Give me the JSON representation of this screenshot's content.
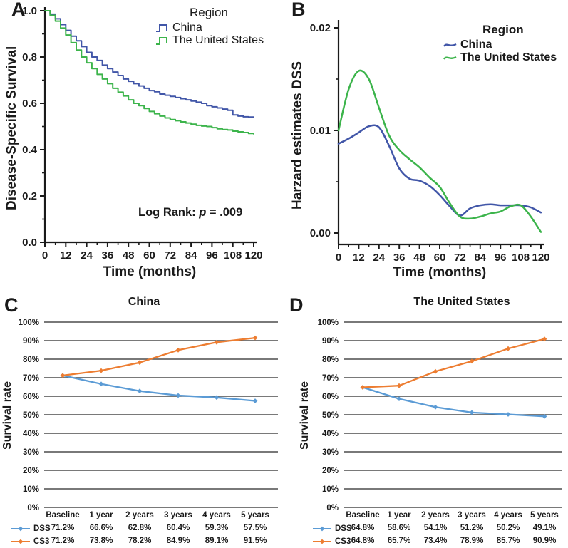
{
  "panels": {
    "a": {
      "label": "A"
    },
    "b": {
      "label": "B"
    },
    "c": {
      "label": "C"
    },
    "d": {
      "label": "D"
    }
  },
  "colors": {
    "km_blue": "#4156A8",
    "km_green": "#3CB44B",
    "excel_blue": "#5B9BD5",
    "excel_orange": "#ED7D31",
    "axis": "#1a1a1a",
    "grid": "#4d4d4d"
  },
  "chart_data": [
    {
      "panel": "A",
      "type": "line",
      "line_style": "step",
      "title": "",
      "xlabel": "Time (months)",
      "ylabel": "Disease-Specific Survival",
      "xlim": [
        0,
        120
      ],
      "ylim": [
        0.0,
        1.0
      ],
      "xticks": [
        0,
        12,
        24,
        36,
        48,
        60,
        72,
        84,
        96,
        108,
        120
      ],
      "xtick_labels": [
        "0",
        "12",
        "24",
        "36",
        "48",
        "60",
        "72",
        "84",
        "96",
        "108",
        "120"
      ],
      "yticks": [
        0.0,
        0.2,
        0.4,
        0.6,
        0.8,
        1.0
      ],
      "ytick_labels": [
        "0.0",
        "0.2",
        "0.4",
        "0.6",
        "0.8",
        "1.0"
      ],
      "legend_title": "Region",
      "annotation": {
        "prefix": "Log Rank: ",
        "italic": "p",
        "suffix": " = .009"
      },
      "grid": false,
      "legend_position": "top-right-inside",
      "series": [
        {
          "name": "China",
          "color": "#4156A8",
          "x": [
            0,
            3,
            6,
            9,
            12,
            15,
            18,
            21,
            24,
            27,
            30,
            33,
            36,
            39,
            42,
            45,
            48,
            51,
            54,
            57,
            60,
            63,
            66,
            69,
            72,
            75,
            78,
            81,
            84,
            87,
            90,
            93,
            96,
            99,
            102,
            105,
            108,
            111,
            114,
            117,
            120
          ],
          "y": [
            1.0,
            0.985,
            0.965,
            0.94,
            0.915,
            0.89,
            0.87,
            0.845,
            0.82,
            0.8,
            0.785,
            0.765,
            0.75,
            0.735,
            0.72,
            0.705,
            0.695,
            0.685,
            0.675,
            0.665,
            0.655,
            0.65,
            0.64,
            0.635,
            0.63,
            0.625,
            0.62,
            0.615,
            0.61,
            0.605,
            0.6,
            0.59,
            0.585,
            0.58,
            0.575,
            0.57,
            0.55,
            0.545,
            0.542,
            0.541,
            0.54
          ]
        },
        {
          "name": "The United States",
          "color": "#3CB44B",
          "x": [
            0,
            3,
            6,
            9,
            12,
            15,
            18,
            21,
            24,
            27,
            30,
            33,
            36,
            39,
            42,
            45,
            48,
            51,
            54,
            57,
            60,
            63,
            66,
            69,
            72,
            75,
            78,
            81,
            84,
            87,
            90,
            93,
            96,
            99,
            102,
            105,
            108,
            111,
            114,
            117,
            120
          ],
          "y": [
            1.0,
            0.98,
            0.955,
            0.925,
            0.895,
            0.862,
            0.83,
            0.8,
            0.775,
            0.75,
            0.725,
            0.705,
            0.685,
            0.665,
            0.648,
            0.632,
            0.615,
            0.6,
            0.59,
            0.578,
            0.565,
            0.555,
            0.545,
            0.537,
            0.53,
            0.525,
            0.52,
            0.515,
            0.51,
            0.505,
            0.502,
            0.5,
            0.495,
            0.49,
            0.487,
            0.485,
            0.48,
            0.477,
            0.474,
            0.47,
            0.468
          ]
        }
      ]
    },
    {
      "panel": "B",
      "type": "line",
      "line_style": "smooth",
      "title": "",
      "xlabel": "Time (months)",
      "ylabel": "Harzard estimates DSS",
      "xlim": [
        0,
        120
      ],
      "ylim": [
        0.0,
        0.02
      ],
      "xticks": [
        0,
        12,
        24,
        36,
        48,
        60,
        72,
        84,
        96,
        108,
        120
      ],
      "xtick_labels": [
        "0",
        "12",
        "24",
        "36",
        "48",
        "60",
        "72",
        "84",
        "96",
        "108",
        "120"
      ],
      "yticks": [
        0.0,
        0.01,
        0.02
      ],
      "ytick_labels": [
        "0.00",
        "0.01",
        "0.02"
      ],
      "legend_title": "Region",
      "grid": false,
      "legend_position": "top-right-inside",
      "series": [
        {
          "name": "China",
          "color": "#4156A8",
          "x": [
            0,
            6,
            12,
            18,
            24,
            30,
            36,
            42,
            48,
            54,
            60,
            66,
            72,
            78,
            84,
            90,
            96,
            102,
            108,
            114,
            120
          ],
          "y": [
            0.0087,
            0.0092,
            0.0098,
            0.0104,
            0.0103,
            0.0085,
            0.0063,
            0.0053,
            0.0051,
            0.0046,
            0.0037,
            0.0026,
            0.0017,
            0.0024,
            0.0027,
            0.0028,
            0.0027,
            0.0027,
            0.0027,
            0.0025,
            0.002
          ]
        },
        {
          "name": "The United States",
          "color": "#3CB44B",
          "x": [
            0,
            6,
            12,
            18,
            24,
            30,
            36,
            42,
            48,
            54,
            60,
            66,
            72,
            78,
            84,
            90,
            96,
            102,
            108,
            114,
            120
          ],
          "y": [
            0.01,
            0.014,
            0.0158,
            0.015,
            0.0122,
            0.0095,
            0.0081,
            0.0072,
            0.0064,
            0.0054,
            0.0045,
            0.0029,
            0.0016,
            0.0014,
            0.0016,
            0.0019,
            0.0021,
            0.0026,
            0.0027,
            0.0016,
            0.0001
          ]
        }
      ]
    },
    {
      "panel": "C",
      "type": "line",
      "line_style": "straight-markers",
      "title": "China",
      "ylabel": "Survival rate",
      "categories": [
        "Baseline",
        "1 year",
        "2 years",
        "3 years",
        "4 years",
        "5 years"
      ],
      "yticks": [
        0,
        10,
        20,
        30,
        40,
        50,
        60,
        70,
        80,
        90,
        100
      ],
      "ytick_labels": [
        "0%",
        "10%",
        "20%",
        "30%",
        "40%",
        "50%",
        "60%",
        "70%",
        "80%",
        "90%",
        "100%"
      ],
      "ylim": [
        0,
        100
      ],
      "grid": true,
      "legend_position": "table-left",
      "series": [
        {
          "name": "DSS",
          "color": "#5B9BD5",
          "values": [
            71.2,
            66.6,
            62.8,
            60.4,
            59.3,
            57.5
          ],
          "display": [
            "71.2%",
            "66.6%",
            "62.8%",
            "60.4%",
            "59.3%",
            "57.5%"
          ]
        },
        {
          "name": "CS3",
          "color": "#ED7D31",
          "values": [
            71.2,
            73.8,
            78.2,
            84.9,
            89.1,
            91.5
          ],
          "display": [
            "71.2%",
            "73.8%",
            "78.2%",
            "84.9%",
            "89.1%",
            "91.5%"
          ]
        }
      ]
    },
    {
      "panel": "D",
      "type": "line",
      "line_style": "straight-markers",
      "title": "The United States",
      "ylabel": "Survival rate",
      "categories": [
        "Baseline",
        "1 year",
        "2 years",
        "3 years",
        "4 years",
        "5 years"
      ],
      "yticks": [
        0,
        10,
        20,
        30,
        40,
        50,
        60,
        70,
        80,
        90,
        100
      ],
      "ytick_labels": [
        "0%",
        "10%",
        "20%",
        "30%",
        "40%",
        "50%",
        "60%",
        "70%",
        "80%",
        "90%",
        "100%"
      ],
      "ylim": [
        0,
        100
      ],
      "grid": true,
      "legend_position": "table-left",
      "series": [
        {
          "name": "DSS",
          "color": "#5B9BD5",
          "values": [
            64.8,
            58.6,
            54.1,
            51.2,
            50.2,
            49.1
          ],
          "display": [
            "64.8%",
            "58.6%",
            "54.1%",
            "51.2%",
            "50.2%",
            "49.1%"
          ]
        },
        {
          "name": "CS3",
          "color": "#ED7D31",
          "values": [
            64.8,
            65.7,
            73.4,
            78.9,
            85.7,
            90.9
          ],
          "display": [
            "64.8%",
            "65.7%",
            "73.4%",
            "78.9%",
            "85.7%",
            "90.9%"
          ]
        }
      ]
    }
  ]
}
